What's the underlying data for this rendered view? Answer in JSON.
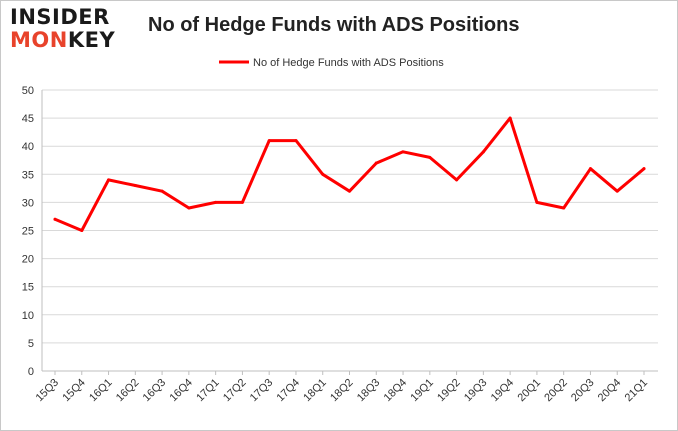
{
  "logo": {
    "line1": "INSIDER",
    "line2_accent": "MON",
    "line2_rest": "KEY"
  },
  "chart_data": {
    "type": "line",
    "title": "No of Hedge Funds with ADS Positions",
    "xlabel": "",
    "ylabel": "",
    "ylim": [
      0,
      50
    ],
    "yticks": [
      0,
      5,
      10,
      15,
      20,
      25,
      30,
      35,
      40,
      45,
      50
    ],
    "grid": true,
    "legend_position": "top-center",
    "categories": [
      "15Q3",
      "15Q4",
      "16Q1",
      "16Q2",
      "16Q3",
      "16Q4",
      "17Q1",
      "17Q2",
      "17Q3",
      "17Q4",
      "18Q1",
      "18Q2",
      "18Q3",
      "18Q4",
      "19Q1",
      "19Q2",
      "19Q3",
      "19Q4",
      "20Q1",
      "20Q2",
      "20Q3",
      "20Q4",
      "21Q1"
    ],
    "series": [
      {
        "name": "No of Hedge Funds with ADS Positions",
        "color": "#ff0000",
        "values": [
          27,
          25,
          34,
          33,
          32,
          29,
          30,
          30,
          41,
          41,
          35,
          32,
          37,
          39,
          38,
          34,
          39,
          45,
          30,
          29,
          36,
          32,
          36
        ]
      }
    ]
  }
}
